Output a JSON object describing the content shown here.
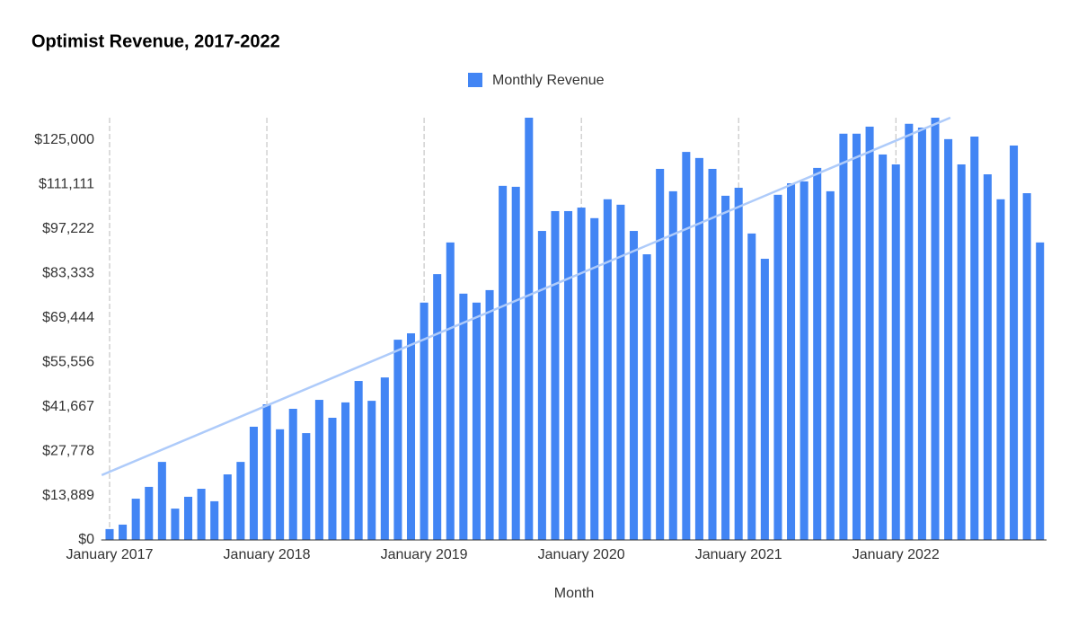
{
  "chart_data": {
    "type": "bar",
    "title": "Optimist Revenue, 2017-2022",
    "x_label": "Month",
    "categories": [
      "January 2017",
      null,
      null,
      null,
      null,
      null,
      null,
      null,
      null,
      null,
      null,
      null,
      "January 2018",
      null,
      null,
      null,
      null,
      null,
      null,
      null,
      null,
      null,
      null,
      null,
      "January 2019",
      null,
      null,
      null,
      null,
      null,
      null,
      null,
      null,
      null,
      null,
      null,
      "January 2020",
      null,
      null,
      null,
      null,
      null,
      null,
      null,
      null,
      null,
      null,
      null,
      "January 2021",
      null,
      null,
      null,
      null,
      null,
      null,
      null,
      null,
      null,
      null,
      null,
      "January 2022",
      null,
      null,
      null,
      null,
      null,
      null,
      null,
      null,
      null,
      null,
      null
    ],
    "series": [
      {
        "name": "Monthly Revenue",
        "color": "#4285f4",
        "values": [
          3400,
          4800,
          12900,
          16600,
          24400,
          9800,
          13500,
          16000,
          12100,
          20500,
          24400,
          35400,
          42400,
          34600,
          41000,
          33400,
          43800,
          38200,
          43000,
          49700,
          43500,
          50800,
          62600,
          64600,
          74200,
          83100,
          93000,
          77000,
          74200,
          78100,
          110700,
          110400,
          132000,
          96600,
          102800,
          102800,
          103900,
          100600,
          106500,
          104800,
          96600,
          89300,
          116000,
          109000,
          121300,
          119400,
          116000,
          107600,
          110100,
          95800,
          87900,
          107900,
          111500,
          112100,
          116300,
          109000,
          127000,
          127000,
          129200,
          120500,
          117400,
          130100,
          128900,
          132000,
          125300,
          117400,
          126100,
          114300,
          106500,
          123300,
          108400,
          93000
        ]
      }
    ],
    "ylim": [
      0,
      132000
    ],
    "yticks": [
      {
        "value": 0,
        "label": "$0"
      },
      {
        "value": 13889,
        "label": "$13,889"
      },
      {
        "value": 27778,
        "label": "$27,778"
      },
      {
        "value": 41667,
        "label": "$41,667"
      },
      {
        "value": 55556,
        "label": "$55,556"
      },
      {
        "value": 69444,
        "label": "$69,444"
      },
      {
        "value": 83333,
        "label": "$83,333"
      },
      {
        "value": 97222,
        "label": "$97,222"
      },
      {
        "value": 111111,
        "label": "$111,111"
      },
      {
        "value": 125000,
        "label": "$125,000"
      }
    ],
    "trendline": true,
    "trendline_color": "#aecbfa",
    "grid": "x-dashed",
    "legend": "top"
  }
}
